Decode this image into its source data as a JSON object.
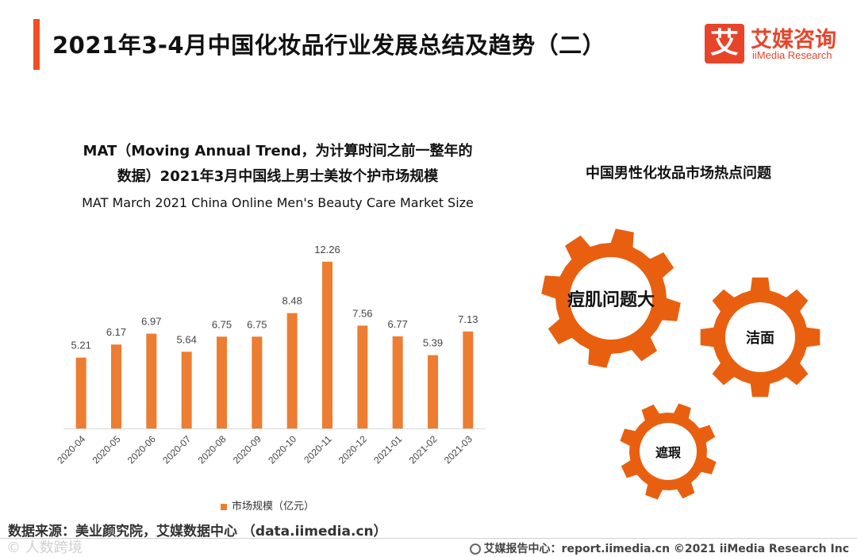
{
  "header": {
    "title": "2021年3-4月中国化妆品行业发展总结及趋势（二）",
    "logo_mark": "艾",
    "logo_cn": "艾媒咨询",
    "logo_en": "iiMedia Research",
    "accent_color": "#f04e23"
  },
  "chart_data": {
    "type": "bar",
    "title_line1": "MAT（Moving Annual Trend，为计算时间之前一整年的",
    "title_line2": "数据）2021年3月中国线上男士美妆个护市场规模",
    "subtitle": "MAT March 2021 China Online Men's Beauty Care Market Size",
    "categories": [
      "2020-04",
      "2020-05",
      "2020-06",
      "2020-07",
      "2020-08",
      "2020-09",
      "2020-10",
      "2020-11",
      "2020-12",
      "2021-01",
      "2021-02",
      "2021-03"
    ],
    "series": [
      {
        "name": "市场规模（亿元）",
        "values": [
          5.21,
          6.17,
          6.97,
          5.64,
          6.75,
          6.75,
          8.48,
          12.26,
          7.56,
          6.77,
          5.39,
          7.13
        ]
      }
    ],
    "value_labels": [
      "5.21",
      "6.17",
      "6.97",
      "5.64",
      "6.75",
      "6.75",
      "8.48",
      "12.26",
      "7.56",
      "6.77",
      "5.39",
      "7.13"
    ],
    "ylim": [
      0,
      14
    ],
    "grid": false,
    "legend_position": "bottom",
    "bar_color": "#ed7d31"
  },
  "hotspots": {
    "title": "中国男性化妆品市场热点问题",
    "gear_color": "#e8600f",
    "items": [
      {
        "label": "痘肌问题大"
      },
      {
        "label": "洁面"
      },
      {
        "label": "遮瑕"
      }
    ]
  },
  "footer": {
    "source": "数据来源：美业颜究院，艾媒数据中心 （data.iimedia.cn）",
    "watermark": "©  人数跨境",
    "site": "艾媒报告中心：report.iimedia.cn   ©2021  iiMedia Research  Inc"
  }
}
